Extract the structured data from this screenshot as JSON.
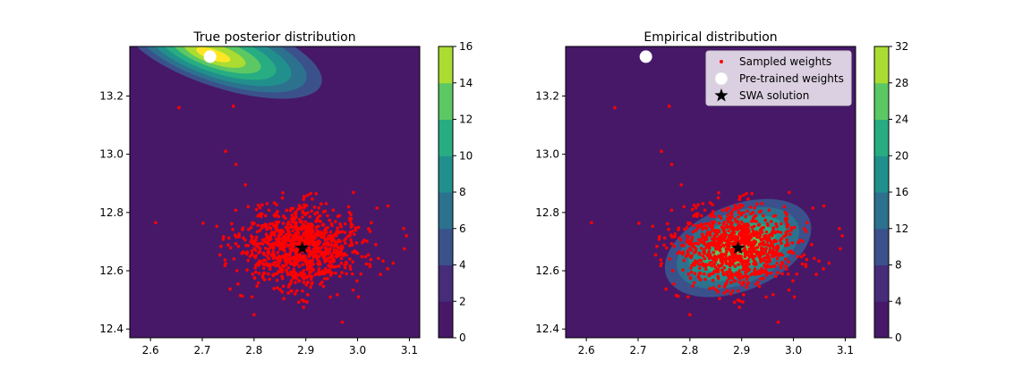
{
  "colors": {
    "viridis_levels": [
      "#440154",
      "#472c7a",
      "#3b518b",
      "#2c718e",
      "#21908d",
      "#27ad81",
      "#5cc863",
      "#aadc32",
      "#fde725"
    ],
    "background_level": "#471868",
    "samples": "#ff0000",
    "pretrained": "#ffffff",
    "swa": "#000000"
  },
  "chart_data": [
    {
      "type": "scatter",
      "subtype": "filled-contour",
      "title": "True posterior distribution",
      "xlim": [
        2.56,
        3.12
      ],
      "ylim": [
        12.37,
        13.37
      ],
      "xticks": [
        "2.6",
        "2.7",
        "2.8",
        "2.9",
        "3.0",
        "3.1"
      ],
      "yticks": [
        "12.4",
        "12.6",
        "12.8",
        "13.0",
        "13.2"
      ],
      "colorbar": {
        "min": 0,
        "max": 16,
        "levels": [
          0,
          2,
          4,
          6,
          8,
          10,
          12,
          14,
          16
        ],
        "ticks": [
          "0",
          "2",
          "4",
          "6",
          "8",
          "10",
          "12",
          "14",
          "16"
        ]
      },
      "density_center": [
        2.73,
        13.34
      ],
      "series": [
        {
          "name": "Sampled weights",
          "cloud_center": [
            2.89,
            12.68
          ],
          "cloud_std": [
            0.06,
            0.07
          ],
          "count": 1000
        },
        {
          "name": "Pre-trained weights",
          "point": [
            2.715,
            13.335
          ]
        },
        {
          "name": "SWA solution",
          "point": [
            2.893,
            12.678
          ]
        }
      ],
      "grid": false
    },
    {
      "type": "scatter",
      "subtype": "filled-contour",
      "title": "Empirical distribution",
      "xlim": [
        2.56,
        3.12
      ],
      "ylim": [
        12.37,
        13.37
      ],
      "xticks": [
        "2.6",
        "2.7",
        "2.8",
        "2.9",
        "3.0",
        "3.1"
      ],
      "yticks": [
        "12.4",
        "12.6",
        "12.8",
        "13.0",
        "13.2"
      ],
      "colorbar": {
        "min": 0,
        "max": 32,
        "levels": [
          0,
          4,
          8,
          12,
          16,
          20,
          24,
          28,
          32
        ],
        "ticks": [
          "0",
          "4",
          "8",
          "12",
          "16",
          "20",
          "24",
          "28",
          "32"
        ]
      },
      "density_center": [
        2.893,
        12.678
      ],
      "legend": {
        "placement": "top-right",
        "entries": [
          "Sampled weights",
          "Pre-trained weights",
          "SWA solution"
        ]
      },
      "series": [
        {
          "name": "Sampled weights",
          "cloud_center": [
            2.89,
            12.68
          ],
          "cloud_std": [
            0.06,
            0.07
          ],
          "count": 1000
        },
        {
          "name": "Pre-trained weights",
          "point": [
            2.715,
            13.335
          ]
        },
        {
          "name": "SWA solution",
          "point": [
            2.893,
            12.678
          ]
        }
      ],
      "grid": false
    }
  ]
}
